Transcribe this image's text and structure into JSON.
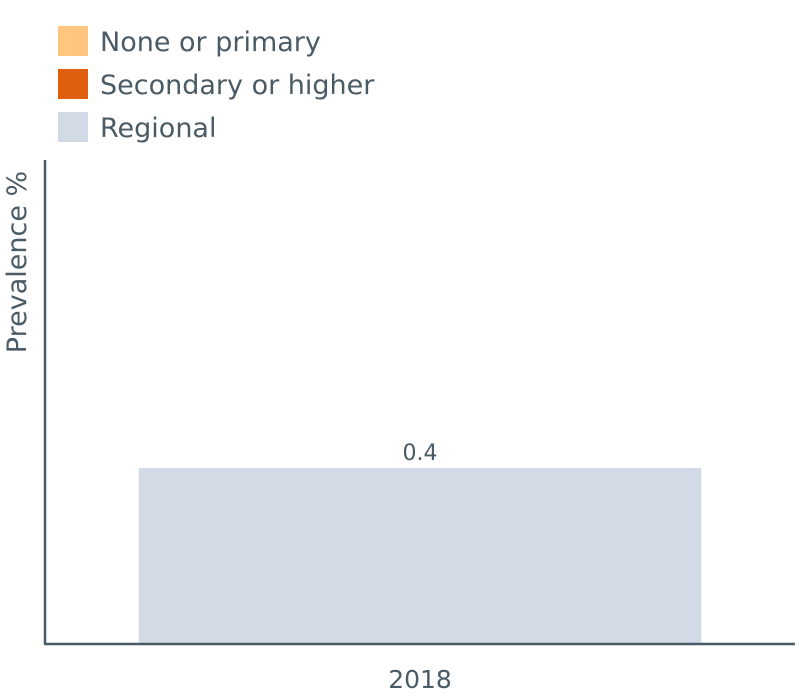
{
  "chart_data": {
    "type": "bar",
    "title": "",
    "xlabel": "",
    "ylabel": "Prevalence %",
    "categories": [
      "2018"
    ],
    "ylim": [
      0,
      1.1
    ],
    "grid": false,
    "legend_position": "top-left",
    "legend": [
      {
        "name": "None or primary",
        "color": "#fec67f"
      },
      {
        "name": "Secondary or higher",
        "color": "#e05e0f"
      },
      {
        "name": "Regional",
        "color": "#d1dae5"
      }
    ],
    "series": [
      {
        "name": "Regional",
        "color": "#d1dae5",
        "values": [
          0.4
        ],
        "labels": [
          "0.4"
        ]
      }
    ]
  }
}
